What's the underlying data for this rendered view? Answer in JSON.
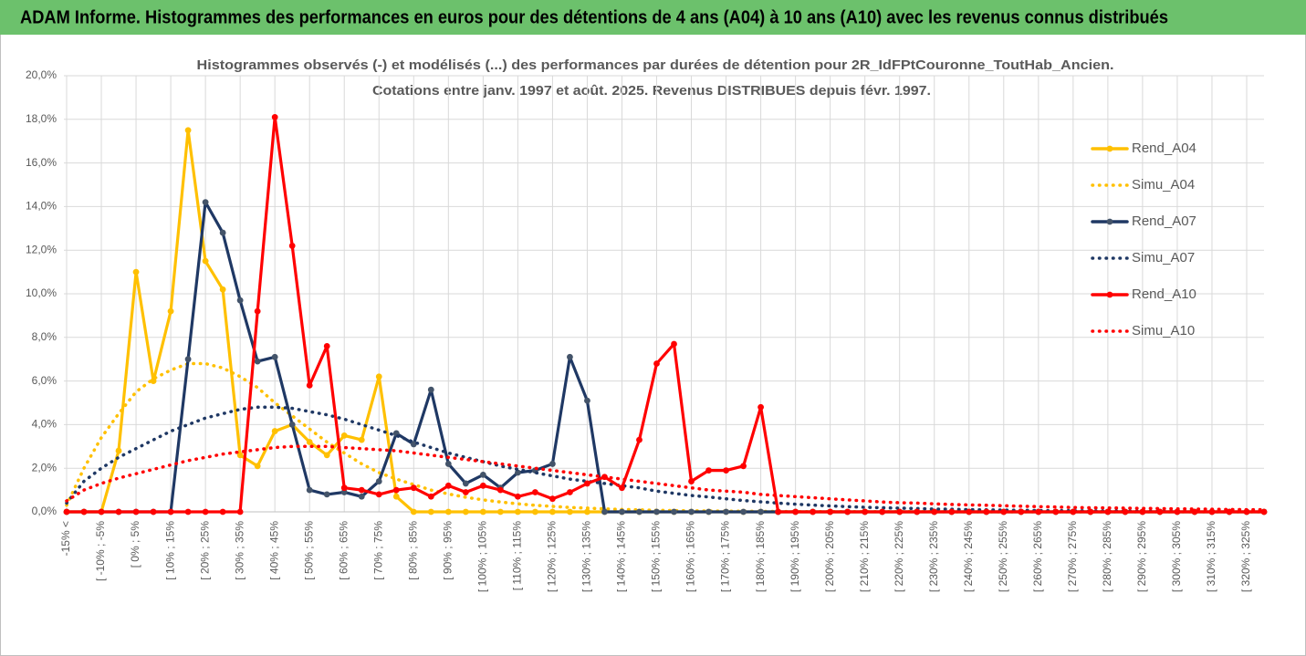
{
  "chart_data": {
    "type": "line",
    "title": "ADAM Informe. Histogrammes des performances en euros pour des détentions de 4 ans (A04) à 10 ans (A10) avec les revenus connus distribués",
    "subtitle": [
      "Histogrammes observés (-) et modélisés (...) des performances par durées de détention pour 2R_IdFPtCouronne_ToutHab_Ancien.",
      "Cotations entre janv. 1997 et août. 2025. Revenus DISTRIBUES depuis févr. 1997."
    ],
    "categories": [
      "-15% <",
      null,
      "[ -10% ; -5%",
      null,
      "[ 0% ; 5%",
      null,
      "[ 10% ; 15%",
      null,
      "[ 20% ; 25%",
      null,
      "[ 30% ; 35%",
      null,
      "[ 40% ; 45%",
      null,
      "[ 50% ; 55%",
      null,
      "[ 60% ; 65%",
      null,
      "[ 70% ; 75%",
      null,
      "[ 80% ; 85%",
      null,
      "[ 90% ; 95%",
      null,
      "[ 100% ; 105%",
      null,
      "[ 110% ; 115%",
      null,
      "[ 120% ; 125%",
      null,
      "[ 130% ; 135%",
      null,
      "[ 140% ; 145%",
      null,
      "[ 150% ; 155%",
      null,
      "[ 160% ; 165%",
      null,
      "[ 170% ; 175%",
      null,
      "[ 180% ; 185%",
      null,
      "[ 190% ; 195%",
      null,
      "[ 200% ; 205%",
      null,
      "[ 210% ; 215%",
      null,
      "[ 220% ; 225%",
      null,
      "[ 230% ; 235%",
      null,
      "[ 240% ; 245%",
      null,
      "[ 250% ; 255%",
      null,
      "[ 260% ; 265%",
      null,
      "[ 270% ; 275%",
      null,
      "[ 280% ; 285%",
      null,
      "[ 290% ; 295%",
      null,
      "[ 300% ; 305%",
      null,
      "[ 310% ; 315%",
      null,
      "[ 320% ; 325%",
      null
    ],
    "series": [
      {
        "name": "Rend_A04",
        "color": "#FFC000",
        "line_style": "solid",
        "markers": true,
        "values": [
          0,
          0,
          0,
          2.8,
          11.0,
          6.0,
          9.2,
          17.5,
          11.5,
          10.2,
          2.6,
          2.1,
          3.7,
          4.0,
          3.2,
          2.6,
          3.5,
          3.3,
          6.2,
          0.7,
          0,
          0,
          0,
          0,
          0,
          0,
          0,
          0,
          0,
          0,
          0,
          0,
          0,
          0,
          0,
          0,
          0,
          0,
          0,
          0,
          0,
          0,
          0,
          0,
          0,
          0,
          0,
          0,
          0,
          0,
          0,
          0,
          0,
          0,
          0,
          0,
          0,
          0,
          0,
          0,
          0,
          0,
          0,
          0,
          0,
          0,
          0,
          0,
          0,
          0
        ]
      },
      {
        "name": "Simu_A04",
        "color": "#FFC000",
        "line_style": "dotted",
        "markers": false,
        "values": [
          0.3,
          2.0,
          3.4,
          4.5,
          5.5,
          6.1,
          6.5,
          6.8,
          6.8,
          6.6,
          6.2,
          5.7,
          5.0,
          4.4,
          3.8,
          3.2,
          2.7,
          2.2,
          1.8,
          1.5,
          1.25,
          1.0,
          0.82,
          0.67,
          0.55,
          0.45,
          0.37,
          0.3,
          0.25,
          0.2,
          0.17,
          0.14,
          0.11,
          0.09,
          0.07,
          0.06,
          0.05,
          0.04,
          0.03,
          0.03,
          0.02,
          0.02,
          0.01,
          0.01,
          0.01,
          0.01,
          0.01,
          0.01,
          0.01,
          0.01,
          0.01,
          0,
          0,
          0,
          0,
          0,
          0,
          0,
          0,
          0,
          0,
          0,
          0,
          0,
          0,
          0,
          0,
          0,
          0,
          0
        ]
      },
      {
        "name": "Rend_A07",
        "color": "#1F3864",
        "line_style": "solid",
        "markers": true,
        "values": [
          0,
          0,
          0,
          0,
          0,
          0,
          0,
          7.0,
          14.2,
          12.8,
          9.7,
          6.9,
          7.1,
          4.0,
          1.0,
          0.8,
          0.9,
          0.7,
          1.4,
          3.6,
          3.1,
          5.6,
          2.2,
          1.3,
          1.7,
          1.1,
          1.8,
          1.9,
          2.2,
          7.1,
          5.1,
          0,
          0,
          0,
          0,
          0,
          0,
          0,
          0,
          0,
          0,
          0,
          0,
          0,
          0,
          0,
          0,
          0,
          0,
          0,
          0,
          0,
          0,
          0,
          0,
          0,
          0,
          0,
          0,
          0,
          0,
          0,
          0,
          0,
          0,
          0,
          0,
          0,
          0,
          0
        ]
      },
      {
        "name": "Simu_A07",
        "color": "#1F3864",
        "line_style": "dotted",
        "markers": false,
        "values": [
          0.4,
          1.4,
          2.0,
          2.5,
          2.9,
          3.3,
          3.7,
          4.0,
          4.3,
          4.5,
          4.7,
          4.8,
          4.8,
          4.75,
          4.6,
          4.45,
          4.25,
          4.0,
          3.75,
          3.5,
          3.2,
          2.95,
          2.7,
          2.5,
          2.3,
          2.1,
          1.95,
          1.8,
          1.65,
          1.5,
          1.4,
          1.3,
          1.2,
          1.1,
          0.95,
          0.85,
          0.75,
          0.68,
          0.6,
          0.52,
          0.46,
          0.4,
          0.35,
          0.31,
          0.27,
          0.24,
          0.21,
          0.19,
          0.17,
          0.15,
          0.13,
          0.12,
          0.1,
          0.09,
          0.08,
          0.07,
          0.06,
          0.05,
          0.05,
          0.04,
          0.04,
          0.03,
          0.03,
          0.02,
          0.02,
          0.02,
          0.01,
          0.01,
          0.01,
          0.01
        ]
      },
      {
        "name": "Rend_A10",
        "color": "#FF0000",
        "line_style": "solid",
        "markers": true,
        "values": [
          0,
          0,
          0,
          0,
          0,
          0,
          0,
          0,
          0,
          0,
          0,
          9.2,
          18.1,
          12.2,
          5.8,
          7.6,
          1.1,
          1.0,
          0.8,
          1.0,
          1.1,
          0.7,
          1.2,
          0.9,
          1.2,
          1.0,
          0.7,
          0.9,
          0.6,
          0.9,
          1.3,
          1.6,
          1.1,
          3.3,
          6.8,
          7.7,
          1.4,
          1.9,
          1.9,
          2.1,
          4.8,
          0,
          0,
          0,
          0,
          0,
          0,
          0,
          0,
          0,
          0,
          0,
          0,
          0,
          0,
          0,
          0,
          0,
          0,
          0,
          0,
          0,
          0,
          0,
          0,
          0,
          0,
          0,
          0,
          0
        ]
      },
      {
        "name": "Simu_A10",
        "color": "#FF0000",
        "line_style": "dotted",
        "markers": false,
        "values": [
          0.5,
          1.0,
          1.3,
          1.55,
          1.75,
          1.95,
          2.15,
          2.35,
          2.5,
          2.65,
          2.75,
          2.85,
          2.95,
          3.0,
          3.0,
          3.0,
          2.95,
          2.9,
          2.85,
          2.8,
          2.7,
          2.6,
          2.5,
          2.4,
          2.3,
          2.2,
          2.1,
          2.0,
          1.9,
          1.8,
          1.7,
          1.6,
          1.5,
          1.4,
          1.3,
          1.2,
          1.1,
          1.0,
          0.95,
          0.9,
          0.8,
          0.75,
          0.7,
          0.65,
          0.6,
          0.55,
          0.5,
          0.45,
          0.42,
          0.4,
          0.37,
          0.34,
          0.32,
          0.3,
          0.28,
          0.26,
          0.24,
          0.22,
          0.2,
          0.19,
          0.18,
          0.17,
          0.16,
          0.15,
          0.14,
          0.13,
          0.12,
          0.11,
          0.1,
          0.1
        ]
      }
    ],
    "ylim": [
      0,
      20
    ],
    "yticks": [
      {
        "value": 0,
        "label": "0,0%"
      },
      {
        "value": 2,
        "label": "2,0%"
      },
      {
        "value": 4,
        "label": "4,0%"
      },
      {
        "value": 6,
        "label": "6,0%"
      },
      {
        "value": 8,
        "label": "8,0%"
      },
      {
        "value": 10,
        "label": "10,0%"
      },
      {
        "value": 12,
        "label": "12,0%"
      },
      {
        "value": 14,
        "label": "14,0%"
      },
      {
        "value": 16,
        "label": "16,0%"
      },
      {
        "value": 18,
        "label": "18,0%"
      },
      {
        "value": 20,
        "label": "20,0%"
      }
    ],
    "grid": true,
    "legend": "right"
  }
}
